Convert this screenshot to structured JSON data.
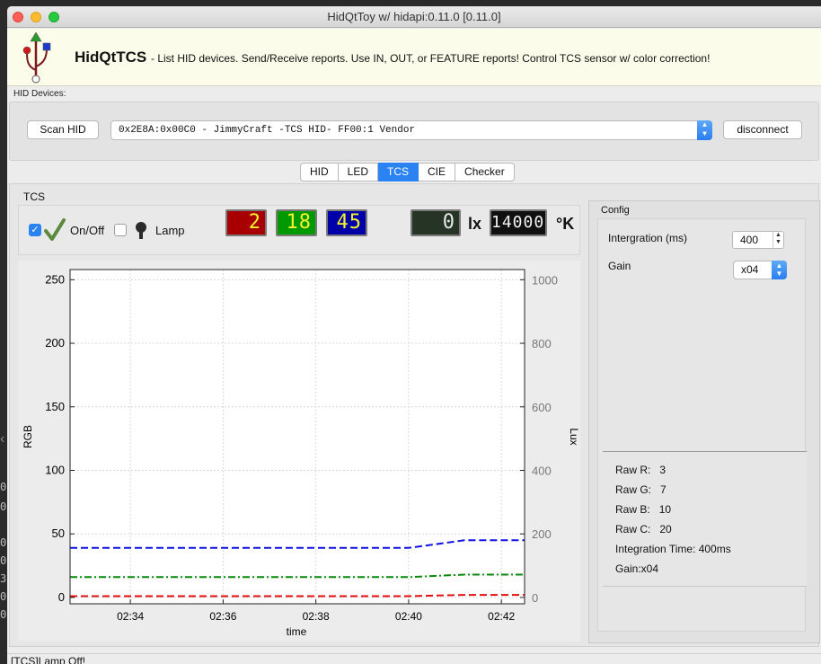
{
  "window": {
    "title": "HidQtToy w/ hidapi:0.11.0 [0.11.0]"
  },
  "banner": {
    "app_name": "HidQtTCS",
    "description": "- List HID devices. Send/Receive reports. Use IN, OUT, or FEATURE reports! Control TCS sensor w/ color correction!"
  },
  "hid": {
    "section_label": "HID Devices:",
    "scan_label": "Scan HID",
    "selected_device": "0x2E8A:0x00C0 - JimmyCraft -TCS HID-  FF00:1 Vendor",
    "disconnect_label": "disconnect"
  },
  "tabs": [
    {
      "label": "HID"
    },
    {
      "label": "LED"
    },
    {
      "label": "TCS",
      "active": true
    },
    {
      "label": "CIE"
    },
    {
      "label": "Checker"
    }
  ],
  "tcs": {
    "group_title": "TCS",
    "onoff_label": "On/Off",
    "onoff_checked": true,
    "lamp_label": "Lamp",
    "lamp_checked": false,
    "display_r": "2",
    "display_g": "18",
    "display_b": "45",
    "display_lux": "0",
    "lux_unit": "lx",
    "display_cct": "14000",
    "cct_unit": "°K",
    "colors": {
      "r_bg": "#a80000",
      "g_bg": "#009a00",
      "b_bg": "#0000a8",
      "lux_bg": "#263426",
      "cct_bg": "#101010",
      "digit": "#f7f32b"
    }
  },
  "config": {
    "title": "Config",
    "integration_label": "Intergration (ms)",
    "integration_value": "400",
    "gain_label": "Gain",
    "gain_value": "x04",
    "raw": {
      "r_label": "Raw R:",
      "r_value": "3",
      "g_label": "Raw G:",
      "g_value": "7",
      "b_label": "Raw B:",
      "b_value": "10",
      "c_label": "Raw C:",
      "c_value": "20",
      "integration_line": "Integration Time: 400ms",
      "gain_line": "Gain:x04"
    }
  },
  "status": {
    "message": "[TCS]Lamp Off!"
  },
  "chart_data": {
    "type": "line",
    "xlabel": "time",
    "ylabel": "RGB",
    "y2label": "Lux",
    "x_tick_labels": [
      "02:34",
      "02:36",
      "02:38",
      "02:40",
      "02:42"
    ],
    "x_ticks_minutes": [
      154,
      156,
      158,
      160,
      162
    ],
    "xlim_minutes": [
      152.7,
      162.5
    ],
    "ylim": [
      -5,
      258
    ],
    "y_ticks": [
      0,
      50,
      100,
      150,
      200,
      250
    ],
    "y2lim": [
      -20,
      1032
    ],
    "y2_ticks": [
      0,
      200,
      400,
      600,
      800,
      1000
    ],
    "grid": true,
    "series": [
      {
        "color": "#1010e0",
        "dash": "dashed",
        "x": [
          152.7,
          160.0,
          161.2,
          162.5
        ],
        "y": [
          39,
          39,
          45,
          45
        ]
      },
      {
        "color": "#0a8a0a",
        "dash": "dashdot",
        "x": [
          152.7,
          160.0,
          161.2,
          162.5
        ],
        "y": [
          16,
          16,
          18,
          18
        ]
      },
      {
        "color": "#e01010",
        "dash": "dashed",
        "x": [
          152.7,
          160.0,
          161.2,
          162.5
        ],
        "y": [
          1,
          1,
          2,
          2
        ]
      }
    ]
  }
}
